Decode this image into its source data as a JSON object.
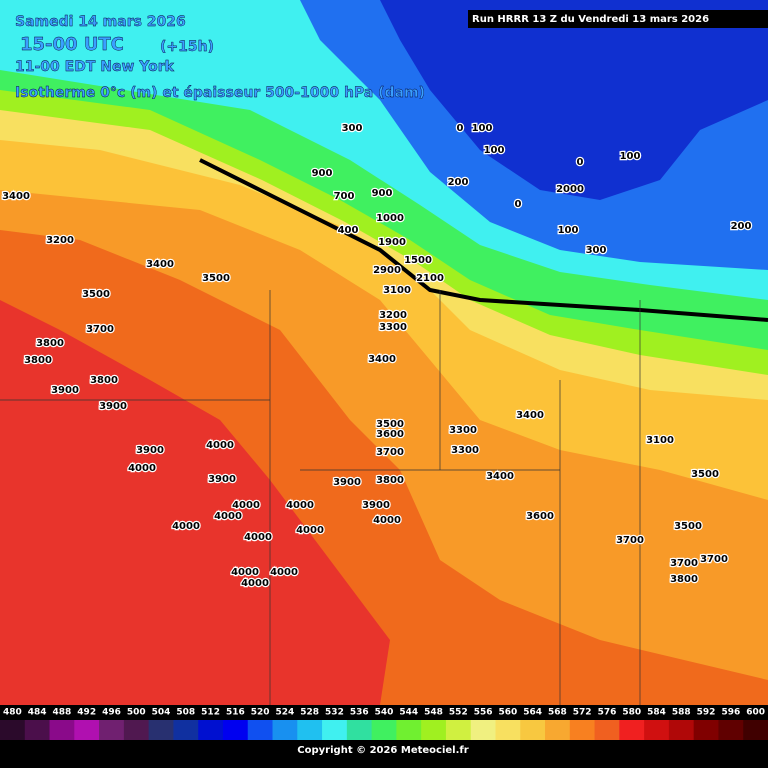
{
  "header": {
    "date": "Samedi 14 mars 2026",
    "time_utc": "15-00 UTC",
    "lead": "(+15h)",
    "time_local": "11-00 EDT New York",
    "field": "Isotherme 0°c (m) et épaisseur 500-1000 hPa (dam)",
    "run": "Run HRRR 13 Z du Vendredi 13 mars 2026"
  },
  "map": {
    "labels": [
      4000,
      4000,
      4000,
      4000,
      4000,
      4000,
      4000,
      4000,
      4000,
      4000,
      4000,
      4000,
      3900,
      3900,
      3900,
      3900,
      3900,
      3900,
      3800,
      3800,
      3800,
      3800,
      3800,
      3700,
      3700,
      3700,
      3700,
      3700,
      3600,
      3600,
      3500,
      3500,
      3500,
      3500,
      3500,
      3400,
      3400,
      3400,
      3400,
      3400,
      3300,
      3300,
      3300,
      3200,
      3200,
      3100,
      3100,
      2100,
      1900,
      1500,
      1000,
      900,
      900,
      700,
      400,
      300,
      300,
      200,
      200,
      100,
      100,
      100,
      100,
      0,
      0,
      0,
      2000,
      2900
    ]
  },
  "legend": {
    "labels": [
      480,
      484,
      488,
      492,
      496,
      500,
      504,
      508,
      512,
      516,
      520,
      524,
      528,
      532,
      536,
      540,
      544,
      548,
      552,
      556,
      560,
      564,
      568,
      572,
      576,
      580,
      584,
      588,
      592,
      596,
      600
    ],
    "colors": [
      "#2b0a2b",
      "#4b0f4b",
      "#8a0a8a",
      "#b010b0",
      "#702070",
      "#501850",
      "#283070",
      "#1030a0",
      "#0010d0",
      "#0000f0",
      "#1050f0",
      "#1890f0",
      "#20c0f0",
      "#40f0f0",
      "#30e0a0",
      "#40f060",
      "#70f030",
      "#a0f020",
      "#d0f040",
      "#f0f080",
      "#f8e060",
      "#f8c840",
      "#f8a830",
      "#f88020",
      "#f06020",
      "#f02020",
      "#d01010",
      "#b00808",
      "#800000",
      "#600000",
      "#400000"
    ]
  },
  "footer": {
    "copyright": "Copyright © 2026 Meteociel.fr"
  }
}
